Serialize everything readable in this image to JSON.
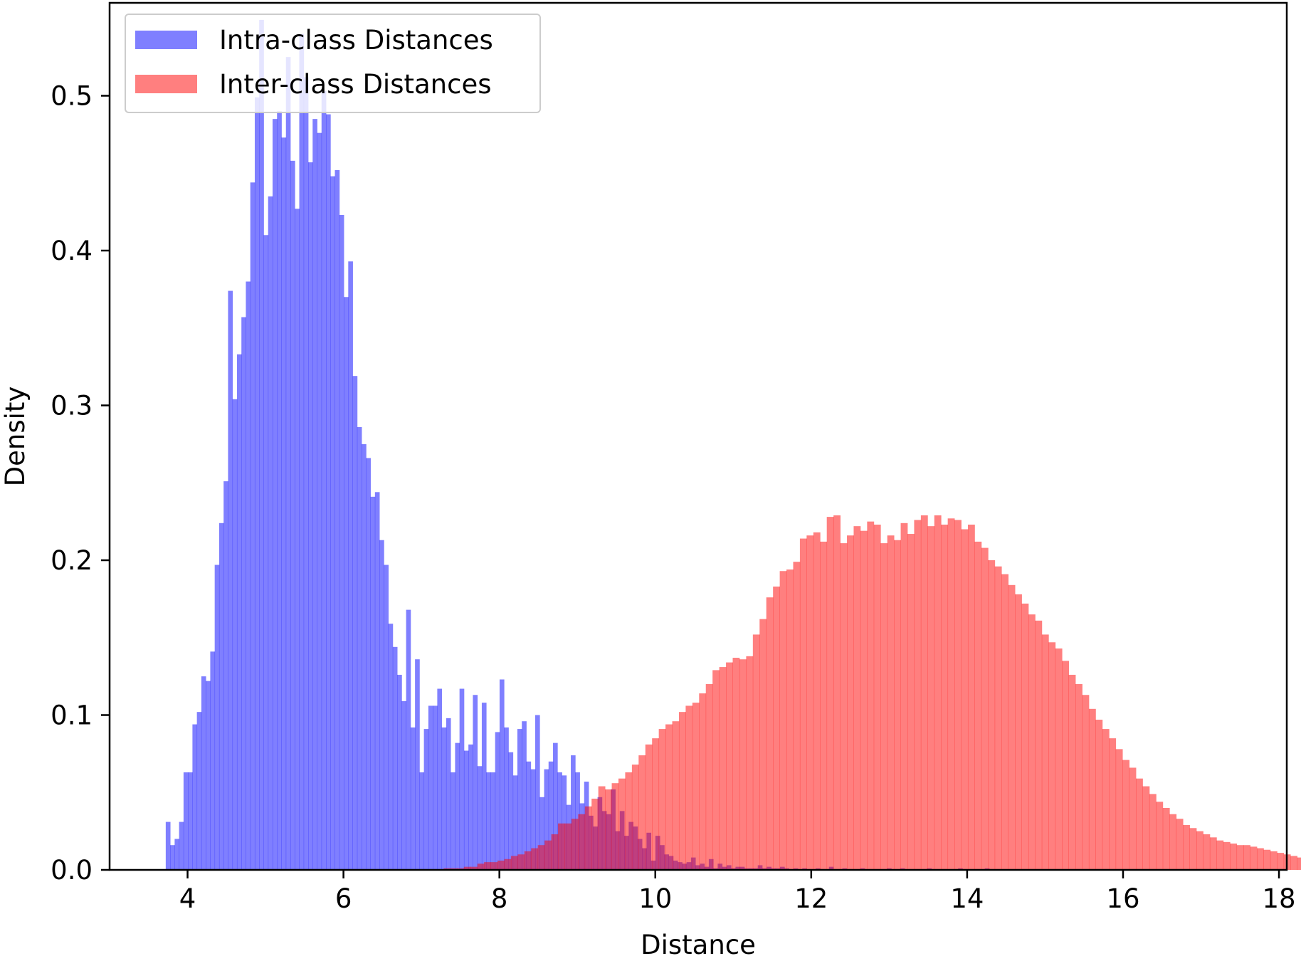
{
  "chart_data": {
    "type": "bar",
    "xlabel": "Distance",
    "ylabel": "Density",
    "xlim": [
      3,
      18.1
    ],
    "ylim": [
      0,
      0.56
    ],
    "xticks": [
      4,
      6,
      8,
      10,
      12,
      14,
      16,
      18
    ],
    "yticks": [
      0.0,
      0.1,
      0.2,
      0.3,
      0.4,
      0.5
    ],
    "xtick_labels": [
      "4",
      "6",
      "8",
      "10",
      "12",
      "14",
      "16",
      "18"
    ],
    "ytick_labels": [
      "0.0",
      "0.1",
      "0.2",
      "0.3",
      "0.4",
      "0.5"
    ],
    "grid": false,
    "legend_position": "top-left",
    "series": [
      {
        "name": "Intra-class Distances",
        "color": "#0000ff",
        "alpha": 0.5,
        "bin_start": 3.72,
        "bin_width": 0.0571,
        "values": [
          0.031,
          0.016,
          0.02,
          0.031,
          0.063,
          0.063,
          0.094,
          0.102,
          0.125,
          0.122,
          0.141,
          0.197,
          0.224,
          0.251,
          0.374,
          0.304,
          0.333,
          0.357,
          0.38,
          0.444,
          0.499,
          0.549,
          0.41,
          0.435,
          0.485,
          0.49,
          0.473,
          0.525,
          0.458,
          0.427,
          0.54,
          0.512,
          0.457,
          0.485,
          0.476,
          0.503,
          0.488,
          0.448,
          0.452,
          0.423,
          0.37,
          0.393,
          0.319,
          0.286,
          0.275,
          0.266,
          0.241,
          0.244,
          0.213,
          0.197,
          0.159,
          0.144,
          0.126,
          0.109,
          0.168,
          0.092,
          0.136,
          0.063,
          0.091,
          0.106,
          0.106,
          0.117,
          0.092,
          0.098,
          0.063,
          0.082,
          0.117,
          0.077,
          0.081,
          0.113,
          0.067,
          0.108,
          0.063,
          0.063,
          0.089,
          0.123,
          0.092,
          0.076,
          0.061,
          0.091,
          0.096,
          0.07,
          0.065,
          0.1,
          0.047,
          0.065,
          0.07,
          0.082,
          0.063,
          0.061,
          0.042,
          0.074,
          0.063,
          0.043,
          0.057,
          0.035,
          0.028,
          0.047,
          0.038,
          0.036,
          0.052,
          0.025,
          0.038,
          0.022,
          0.031,
          0.028,
          0.02,
          0.014,
          0.024,
          0.006,
          0.022,
          0.016,
          0.01,
          0.009,
          0.006,
          0.005,
          0.004,
          0.005,
          0.008,
          0.003,
          0.004,
          0.002,
          0.007,
          0.001,
          0.004,
          0.002,
          0.003,
          0.001,
          0.002,
          0.002,
          0.001,
          0.001,
          0.001,
          0.003,
          0.001,
          0.002,
          0.001,
          0.001,
          0.002,
          0.001,
          0.0,
          0.001,
          0.0,
          0.001,
          0.0,
          0.0,
          0.001,
          0.0,
          0.0,
          0.002,
          0.0,
          0.0,
          0.001,
          0.0,
          0.0,
          0.0,
          0.001,
          0.0,
          0.0,
          0.0,
          0.0,
          0.0,
          0.001,
          0.0,
          0.0,
          0.001,
          0.0,
          0.0,
          0.0,
          0.0,
          0.0,
          0.001,
          0.0,
          0.0,
          0.0,
          0.0,
          0.0,
          0.0,
          0.001,
          0.0,
          0.0,
          0.0,
          0.0,
          0.0,
          0.001
        ]
      },
      {
        "name": "Inter-class Distances",
        "color": "#ff0000",
        "alpha": 0.5,
        "bin_start": 7.2,
        "bin_width": 0.0862,
        "values": [
          0.0,
          0.001,
          0.001,
          0.001,
          0.002,
          0.002,
          0.004,
          0.005,
          0.005,
          0.006,
          0.007,
          0.009,
          0.01,
          0.012,
          0.014,
          0.016,
          0.019,
          0.023,
          0.03,
          0.03,
          0.033,
          0.036,
          0.041,
          0.046,
          0.054,
          0.052,
          0.056,
          0.059,
          0.063,
          0.068,
          0.074,
          0.081,
          0.085,
          0.091,
          0.094,
          0.096,
          0.102,
          0.106,
          0.108,
          0.114,
          0.12,
          0.129,
          0.131,
          0.134,
          0.137,
          0.136,
          0.138,
          0.152,
          0.162,
          0.176,
          0.183,
          0.193,
          0.194,
          0.199,
          0.214,
          0.216,
          0.218,
          0.212,
          0.228,
          0.229,
          0.211,
          0.216,
          0.222,
          0.219,
          0.225,
          0.223,
          0.211,
          0.216,
          0.213,
          0.224,
          0.217,
          0.226,
          0.229,
          0.222,
          0.229,
          0.223,
          0.227,
          0.226,
          0.22,
          0.223,
          0.212,
          0.208,
          0.2,
          0.196,
          0.191,
          0.184,
          0.178,
          0.172,
          0.165,
          0.161,
          0.152,
          0.147,
          0.143,
          0.135,
          0.126,
          0.12,
          0.113,
          0.104,
          0.097,
          0.091,
          0.085,
          0.078,
          0.071,
          0.066,
          0.059,
          0.054,
          0.049,
          0.044,
          0.04,
          0.036,
          0.033,
          0.029,
          0.027,
          0.025,
          0.023,
          0.021,
          0.019,
          0.018,
          0.017,
          0.016,
          0.016,
          0.015,
          0.014,
          0.013,
          0.012,
          0.011,
          0.01,
          0.009,
          0.008,
          0.007,
          0.006,
          0.005,
          0.004,
          0.003,
          0.003,
          0.002,
          0.002,
          0.001,
          0.001,
          0.001
        ]
      }
    ]
  }
}
